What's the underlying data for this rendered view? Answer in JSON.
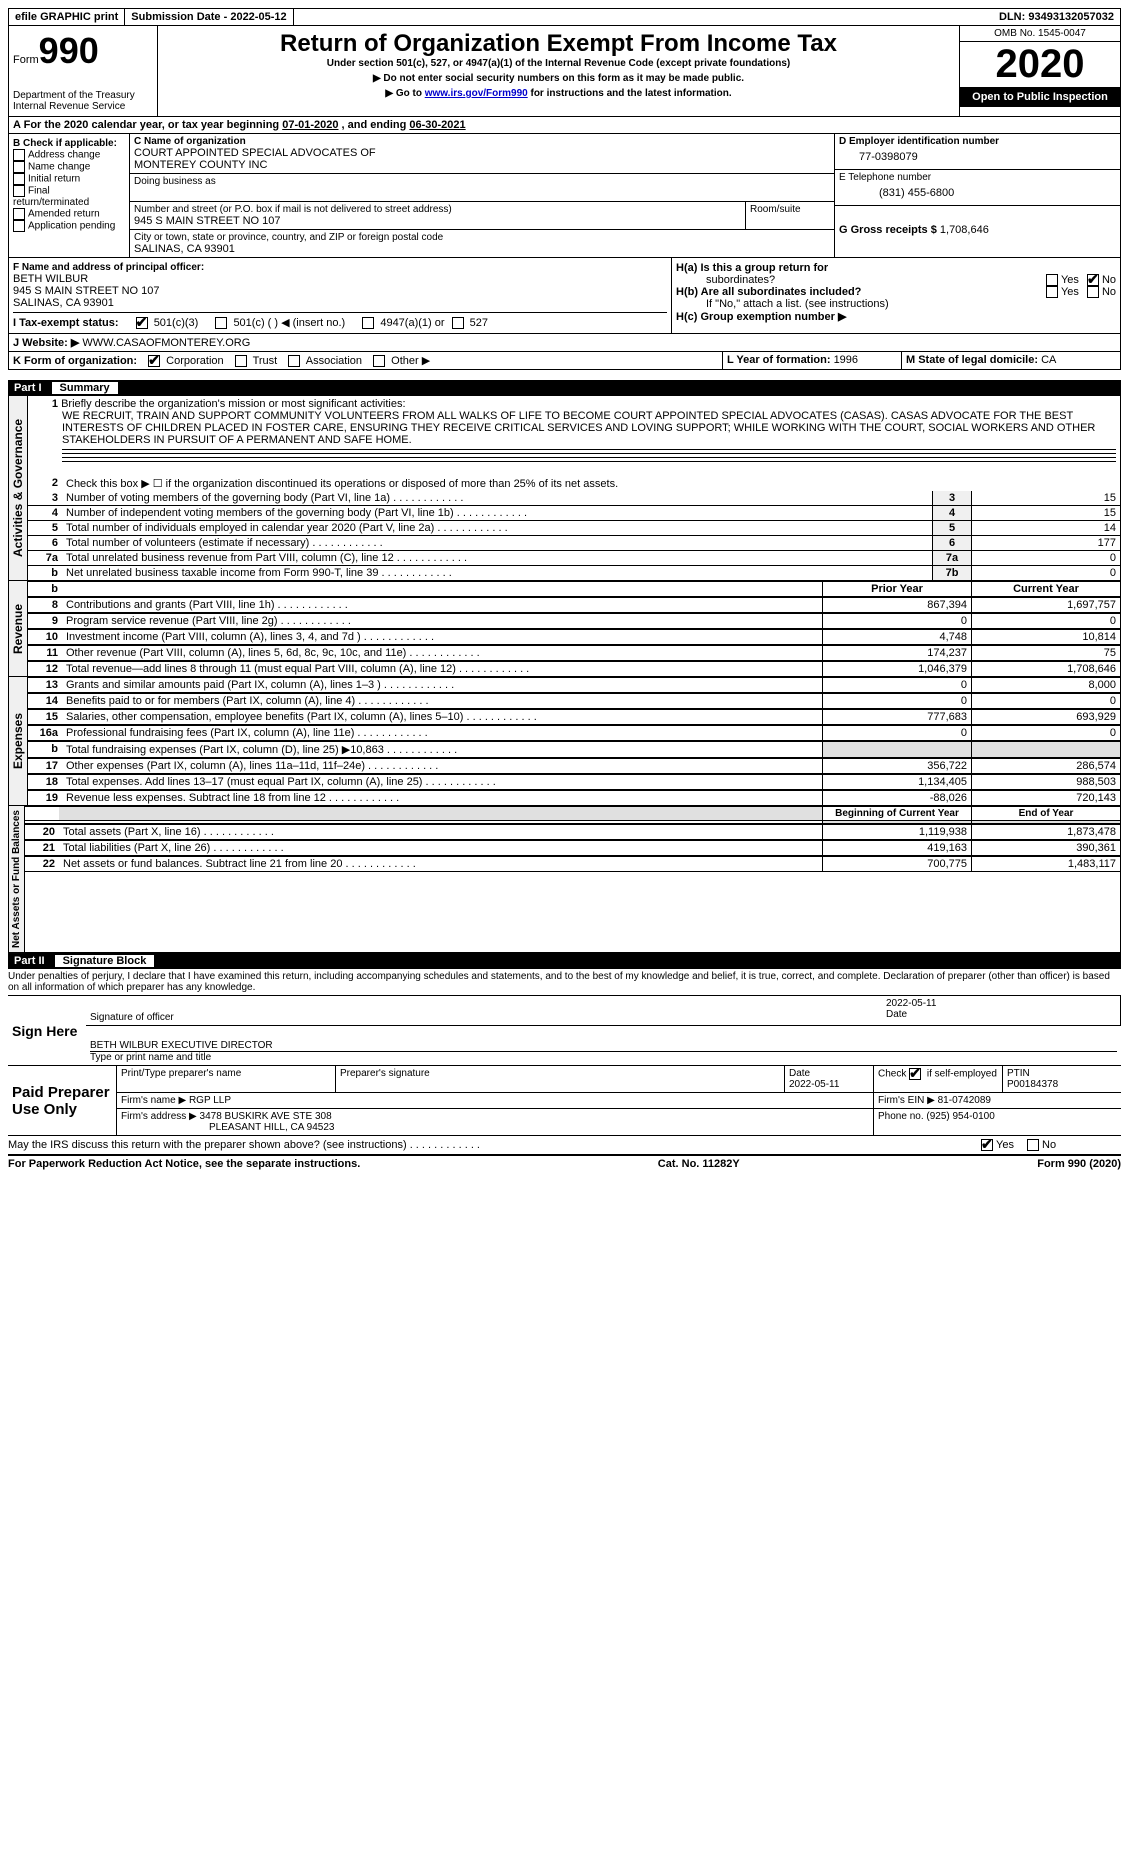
{
  "topbar": {
    "efile": "efile GRAPHIC print",
    "sub_label": "Submission Date - ",
    "sub_date": "2022-05-12",
    "dln_label": "DLN: ",
    "dln": "93493132057032"
  },
  "header": {
    "form_label": "Form",
    "form_num": "990",
    "dept": "Department of the Treasury\nInternal Revenue Service",
    "title": "Return of Organization Exempt From Income Tax",
    "sub1": "Under section 501(c), 527, or 4947(a)(1) of the Internal Revenue Code (except private foundations)",
    "sub2": "▶ Do not enter social security numbers on this form as it may be made public.",
    "sub3_a": "▶ Go to ",
    "sub3_link": "www.irs.gov/Form990",
    "sub3_b": " for instructions and the latest information.",
    "omb": "OMB No. 1545-0047",
    "year": "2020",
    "open": "Open to Public Inspection"
  },
  "sectionA": {
    "text_a": "For the 2020 calendar year, or tax year beginning ",
    "begin": "07-01-2020",
    "mid": "   , and ending ",
    "end": "06-30-2021"
  },
  "boxB": {
    "label": "B Check if applicable:",
    "items": [
      "Address change",
      "Name change",
      "Initial return",
      "Final return/terminated",
      "Amended return",
      "Application pending"
    ]
  },
  "boxC": {
    "c_label": "C Name of organization",
    "org1": "COURT APPOINTED SPECIAL ADVOCATES OF",
    "org2": "MONTEREY COUNTY INC",
    "dba": "Doing business as",
    "street_label": "Number and street (or P.O. box if mail is not delivered to street address)",
    "street": "945 S MAIN STREET NO 107",
    "room_label": "Room/suite",
    "city_label": "City or town, state or province, country, and ZIP or foreign postal code",
    "city": "SALINAS, CA  93901"
  },
  "boxD": {
    "label": "D Employer identification number",
    "val": "77-0398079"
  },
  "boxE": {
    "label": "E Telephone number",
    "val": "(831) 455-6800"
  },
  "boxG": {
    "label": "G Gross receipts $ ",
    "val": "1,708,646"
  },
  "boxF": {
    "label": "F Name and address of principal officer:",
    "name": "BETH WILBUR",
    "l1": "945 S MAIN STREET NO 107",
    "l2": "SALINAS, CA  93901"
  },
  "boxH": {
    "ha": "H(a)  Is this a group return for",
    "ha2": "subordinates?",
    "hb": "H(b)  Are all subordinates included?",
    "hb_note": "If \"No,\" attach a list. (see instructions)",
    "hc": "H(c)  Group exemption number ▶",
    "yes": "Yes",
    "no": "No"
  },
  "boxI": {
    "label": "I   Tax-exempt status:",
    "o1": "501(c)(3)",
    "o2": "501(c) (  ) ◀ (insert no.)",
    "o3": "4947(a)(1) or",
    "o4": "527"
  },
  "boxJ": {
    "label": "J   Website: ▶ ",
    "val": "WWW.CASAOFMONTEREY.ORG"
  },
  "boxK": {
    "label": "K Form of organization:",
    "o1": "Corporation",
    "o2": "Trust",
    "o3": "Association",
    "o4": "Other ▶"
  },
  "boxL": {
    "label": "L Year of formation: ",
    "val": "1996"
  },
  "boxM": {
    "label": "M State of legal domicile: ",
    "val": "CA"
  },
  "part1": {
    "num": "Part I",
    "title": "Summary"
  },
  "mission": {
    "q": "Briefly describe the organization's mission or most significant activities:",
    "text": "WE RECRUIT, TRAIN AND SUPPORT COMMUNITY VOLUNTEERS FROM ALL WALKS OF LIFE TO BECOME COURT APPOINTED SPECIAL ADVOCATES (CASAS). CASAS ADVOCATE FOR THE BEST INTERESTS OF CHILDREN PLACED IN FOSTER CARE, ENSURING THEY RECEIVE CRITICAL SERVICES AND LOVING SUPPORT; WHILE WORKING WITH THE COURT, SOCIAL WORKERS AND OTHER STAKEHOLDERS IN PURSUIT OF A PERMANENT AND SAFE HOME."
  },
  "lines_gov": [
    {
      "n": "2",
      "d": "Check this box ▶ ☐  if the organization discontinued its operations or disposed of more than 25% of its net assets.",
      "box": "",
      "v": ""
    },
    {
      "n": "3",
      "d": "Number of voting members of the governing body (Part VI, line 1a)",
      "box": "3",
      "v": "15"
    },
    {
      "n": "4",
      "d": "Number of independent voting members of the governing body (Part VI, line 1b)",
      "box": "4",
      "v": "15"
    },
    {
      "n": "5",
      "d": "Total number of individuals employed in calendar year 2020 (Part V, line 2a)",
      "box": "5",
      "v": "14"
    },
    {
      "n": "6",
      "d": "Total number of volunteers (estimate if necessary)",
      "box": "6",
      "v": "177"
    },
    {
      "n": "7a",
      "d": "Total unrelated business revenue from Part VIII, column (C), line 12",
      "box": "7a",
      "v": "0"
    },
    {
      "n": "b",
      "d": "Net unrelated business taxable income from Form 990-T, line 39",
      "box": "7b",
      "v": "0"
    }
  ],
  "col_hdrs": {
    "prior": "Prior Year",
    "current": "Current Year",
    "boy": "Beginning of Current Year",
    "eoy": "End of Year"
  },
  "lines_rev": [
    {
      "n": "8",
      "d": "Contributions and grants (Part VIII, line 1h)",
      "p": "867,394",
      "c": "1,697,757"
    },
    {
      "n": "9",
      "d": "Program service revenue (Part VIII, line 2g)",
      "p": "0",
      "c": "0"
    },
    {
      "n": "10",
      "d": "Investment income (Part VIII, column (A), lines 3, 4, and 7d )",
      "p": "4,748",
      "c": "10,814"
    },
    {
      "n": "11",
      "d": "Other revenue (Part VIII, column (A), lines 5, 6d, 8c, 9c, 10c, and 11e)",
      "p": "174,237",
      "c": "75"
    },
    {
      "n": "12",
      "d": "Total revenue—add lines 8 through 11 (must equal Part VIII, column (A), line 12)",
      "p": "1,046,379",
      "c": "1,708,646"
    }
  ],
  "lines_exp": [
    {
      "n": "13",
      "d": "Grants and similar amounts paid (Part IX, column (A), lines 1–3 )",
      "p": "0",
      "c": "8,000"
    },
    {
      "n": "14",
      "d": "Benefits paid to or for members (Part IX, column (A), line 4)",
      "p": "0",
      "c": "0"
    },
    {
      "n": "15",
      "d": "Salaries, other compensation, employee benefits (Part IX, column (A), lines 5–10)",
      "p": "777,683",
      "c": "693,929"
    },
    {
      "n": "16a",
      "d": "Professional fundraising fees (Part IX, column (A), line 11e)",
      "p": "0",
      "c": "0"
    },
    {
      "n": "b",
      "d": "Total fundraising expenses (Part IX, column (D), line 25) ▶10,863",
      "p": "",
      "c": "",
      "grey": true
    },
    {
      "n": "17",
      "d": "Other expenses (Part IX, column (A), lines 11a–11d, 11f–24e)",
      "p": "356,722",
      "c": "286,574"
    },
    {
      "n": "18",
      "d": "Total expenses. Add lines 13–17 (must equal Part IX, column (A), line 25)",
      "p": "1,134,405",
      "c": "988,503"
    },
    {
      "n": "19",
      "d": "Revenue less expenses. Subtract line 18 from line 12",
      "p": "-88,026",
      "c": "720,143"
    }
  ],
  "lines_net": [
    {
      "n": "20",
      "d": "Total assets (Part X, line 16)",
      "p": "1,119,938",
      "c": "1,873,478"
    },
    {
      "n": "21",
      "d": "Total liabilities (Part X, line 26)",
      "p": "419,163",
      "c": "390,361"
    },
    {
      "n": "22",
      "d": "Net assets or fund balances. Subtract line 21 from line 20",
      "p": "700,775",
      "c": "1,483,117"
    }
  ],
  "vtabs": {
    "gov": "Activities & Governance",
    "rev": "Revenue",
    "exp": "Expenses",
    "net": "Net Assets or\nFund Balances"
  },
  "part2": {
    "num": "Part II",
    "title": "Signature Block"
  },
  "sig": {
    "decl": "Under penalties of perjury, I declare that I have examined this return, including accompanying schedules and statements, and to the best of my knowledge and belief, it is true, correct, and complete. Declaration of preparer (other than officer) is based on all information of which preparer has any knowledge.",
    "sign_here": "Sign Here",
    "sig_officer": "Signature of officer",
    "sig_date": "2022-05-11",
    "date_lbl": "Date",
    "officer_name": "BETH WILBUR  EXECUTIVE DIRECTOR",
    "type_name": "Type or print name and title",
    "paid": "Paid Preparer Use Only",
    "prep_name_lbl": "Print/Type preparer's name",
    "prep_sig_lbl": "Preparer's signature",
    "prep_date": "2022-05-11",
    "check_lbl": "Check         if self-employed",
    "check_chk": true,
    "ptin_lbl": "PTIN",
    "ptin": "P00184378",
    "firm_name_lbl": "Firm's name    ▶ ",
    "firm_name": "RGP LLP",
    "firm_ein_lbl": "Firm's EIN ▶ ",
    "firm_ein": "81-0742089",
    "firm_addr_lbl": "Firm's address ▶ ",
    "firm_addr1": "3478 BUSKIRK AVE STE 308",
    "firm_addr2": "PLEASANT HILL, CA  94523",
    "phone_lbl": "Phone no. ",
    "phone": "(925) 954-0100",
    "discuss": "May the IRS discuss this return with the preparer shown above? (see instructions)",
    "yes": "Yes",
    "no": "No"
  },
  "footer": {
    "l": "For Paperwork Reduction Act Notice, see the separate instructions.",
    "c": "Cat. No. 11282Y",
    "r": "Form 990 (2020)"
  }
}
